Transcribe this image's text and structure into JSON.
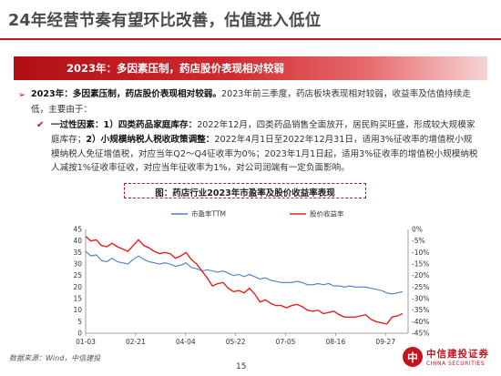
{
  "slide": {
    "title": "24年经营节奏有望环比改善，估值进入低位",
    "banner": "2023年：多因素压制，药店股价表现相对较弱",
    "bullet_marker": "➢",
    "check_marker": "✔",
    "para1_bold": "2023年：多因素压制，药店股价表现相对较弱。",
    "para1_rest": "2023年前三季度，药店板块表现相对较弱，收益率及估值持续走低，主要由于：",
    "para2_bold1": "一过性因素：1）四类药品家庭库存：",
    "para2_text1": "2022年12月，四类药品销售全面放开，居民购买旺盛，形成较大规模家庭库存；",
    "para2_bold2": "2）小规模纳税人税收政策调整：",
    "para2_text2": "2022年4月1日至2022年12月31日，适用3%征收率的增值税小规模纳税人免征增值税，对应当年Q2～Q4征收率为0%；2023年1月1日起，适用3%征收率的增值税小规模纳税人减按1%征收率征收，对应当年征收率为1%，对公司润端有一定负面影响。",
    "source": "数据来源：Wind，中信建投",
    "page_number": "15",
    "logo_mark": "中",
    "logo_cn": "中信建投证券",
    "logo_en": "CHINA SECURITIES"
  },
  "chart_data": {
    "type": "line",
    "title": "图：药店行业2023年市盈率及股价收益率表现",
    "x_ticks": [
      "01-03",
      "02-21",
      "04-04",
      "05-22",
      "07-05",
      "08-16",
      "09-27"
    ],
    "left_axis": {
      "ticks": [
        0,
        5,
        10,
        15,
        20,
        25,
        30,
        35,
        40,
        45
      ],
      "ylim": [
        0,
        45
      ]
    },
    "right_axis": {
      "ticks": [
        "0%",
        "-5%",
        "-10%",
        "-15%",
        "-20%",
        "-25%",
        "-30%",
        "-35%",
        "-40%",
        "-45%"
      ],
      "ylim": [
        -45,
        0
      ]
    },
    "legend_position": "top",
    "series": [
      {
        "name": "市盈率TTM",
        "axis": "left",
        "color": "#4e7cc1",
        "values": [
          35.5,
          33.5,
          34.0,
          31.5,
          31.0,
          32.5,
          31.0,
          30.5,
          30.0,
          32.0,
          33.5,
          32.0,
          31.0,
          30.5,
          30.0,
          30.5,
          30.0,
          29.0,
          29.5,
          30.5,
          28.5,
          28.0,
          27.0,
          27.5,
          27.0,
          26.5,
          27.0,
          26.0,
          25.0,
          25.5,
          24.5,
          25.5,
          24.5,
          23.5,
          24.0,
          23.0,
          22.5,
          22.0,
          22.0,
          22.0,
          22.5,
          22.0,
          21.0,
          21.0,
          21.5,
          21.0,
          21.5,
          20.5,
          20.5,
          20.0,
          20.5,
          20.0,
          20.0,
          20.0,
          19.5,
          19.0,
          18.5,
          17.5,
          17.0,
          17.5,
          18.0
        ]
      },
      {
        "name": "股价收益率",
        "axis": "right",
        "color": "#e8201d",
        "values": [
          -3.0,
          -5.0,
          -4.5,
          -7.0,
          -7.5,
          -6.0,
          -7.5,
          -8.5,
          -9.5,
          -7.0,
          -4.5,
          -7.0,
          -8.0,
          -9.5,
          -10.5,
          -10.0,
          -10.5,
          -12.5,
          -11.5,
          -10.0,
          -13.0,
          -15.0,
          -18.0,
          -21.0,
          -24.5,
          -23.5,
          -23.0,
          -25.5,
          -27.0,
          -26.5,
          -27.5,
          -25.5,
          -28.0,
          -31.5,
          -30.5,
          -32.0,
          -33.0,
          -33.0,
          -34.0,
          -33.0,
          -32.5,
          -33.5,
          -35.0,
          -35.5,
          -35.0,
          -36.5,
          -36.0,
          -35.5,
          -37.0,
          -38.0,
          -38.0,
          -38.0,
          -37.5,
          -37.0,
          -39.0,
          -40.0,
          -40.5,
          -41.0,
          -38.0,
          -37.5,
          -36.5
        ]
      }
    ]
  }
}
